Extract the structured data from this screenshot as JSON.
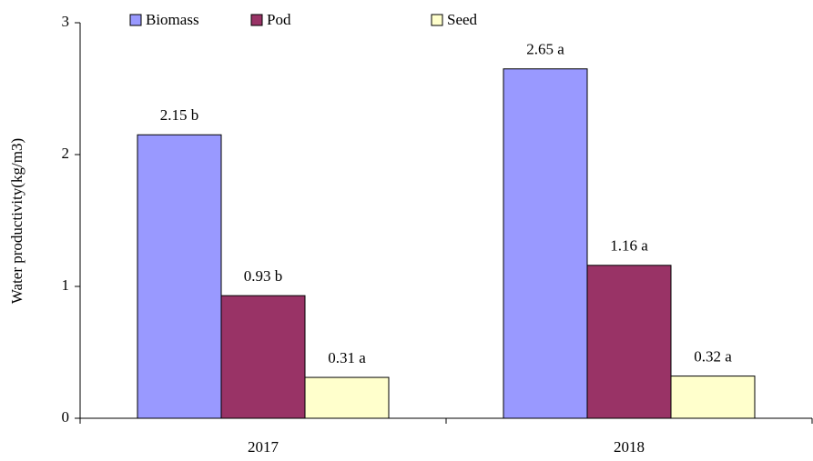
{
  "chart_data": {
    "type": "bar",
    "ylabel": "Water productivity(kg/m3)",
    "categories": [
      "2017",
      "2018"
    ],
    "series": [
      {
        "name": "Biomass",
        "color": "#9999ff",
        "values": [
          2.15,
          2.65
        ],
        "value_labels": [
          "2.15 b",
          "2.65 a"
        ]
      },
      {
        "name": "Pod",
        "color": "#993366",
        "values": [
          0.93,
          1.16
        ],
        "value_labels": [
          "0.93 b",
          "1.16 a"
        ]
      },
      {
        "name": "Seed",
        "color": "#ffffcc",
        "values": [
          0.31,
          0.32
        ],
        "value_labels": [
          "0.31 a",
          "0.32 a"
        ]
      }
    ],
    "ylim": [
      0,
      3
    ],
    "yticks": [
      0,
      1,
      2,
      3
    ],
    "grid": false,
    "legend": "top"
  }
}
